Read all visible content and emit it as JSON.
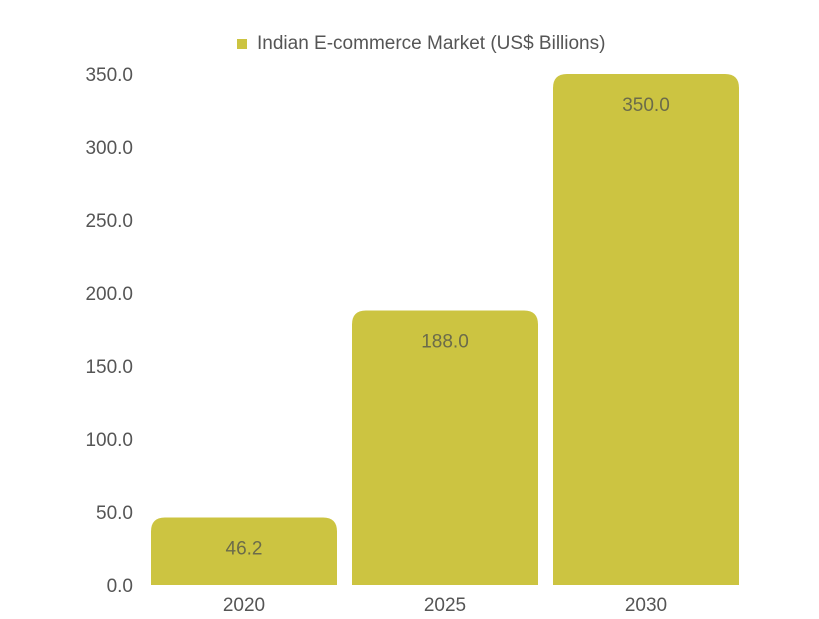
{
  "chart_data": {
    "type": "bar",
    "categories": [
      "2020",
      "2025",
      "2030"
    ],
    "series": [
      {
        "name": "Indian E-commerce Market (US$ Billions)",
        "values": [
          46.2,
          188.0,
          350.0
        ],
        "data_labels": [
          "46.2",
          "188.0",
          "350.0"
        ]
      }
    ],
    "y_ticks": [
      "0.0",
      "50.0",
      "100.0",
      "150.0",
      "200.0",
      "250.0",
      "300.0",
      "350.0"
    ],
    "ylim": [
      0,
      350
    ],
    "grid": false,
    "legend": "top-center"
  },
  "colors": {
    "bar": "#ccc441",
    "text": "#555555",
    "label": "#6b6b4a"
  }
}
